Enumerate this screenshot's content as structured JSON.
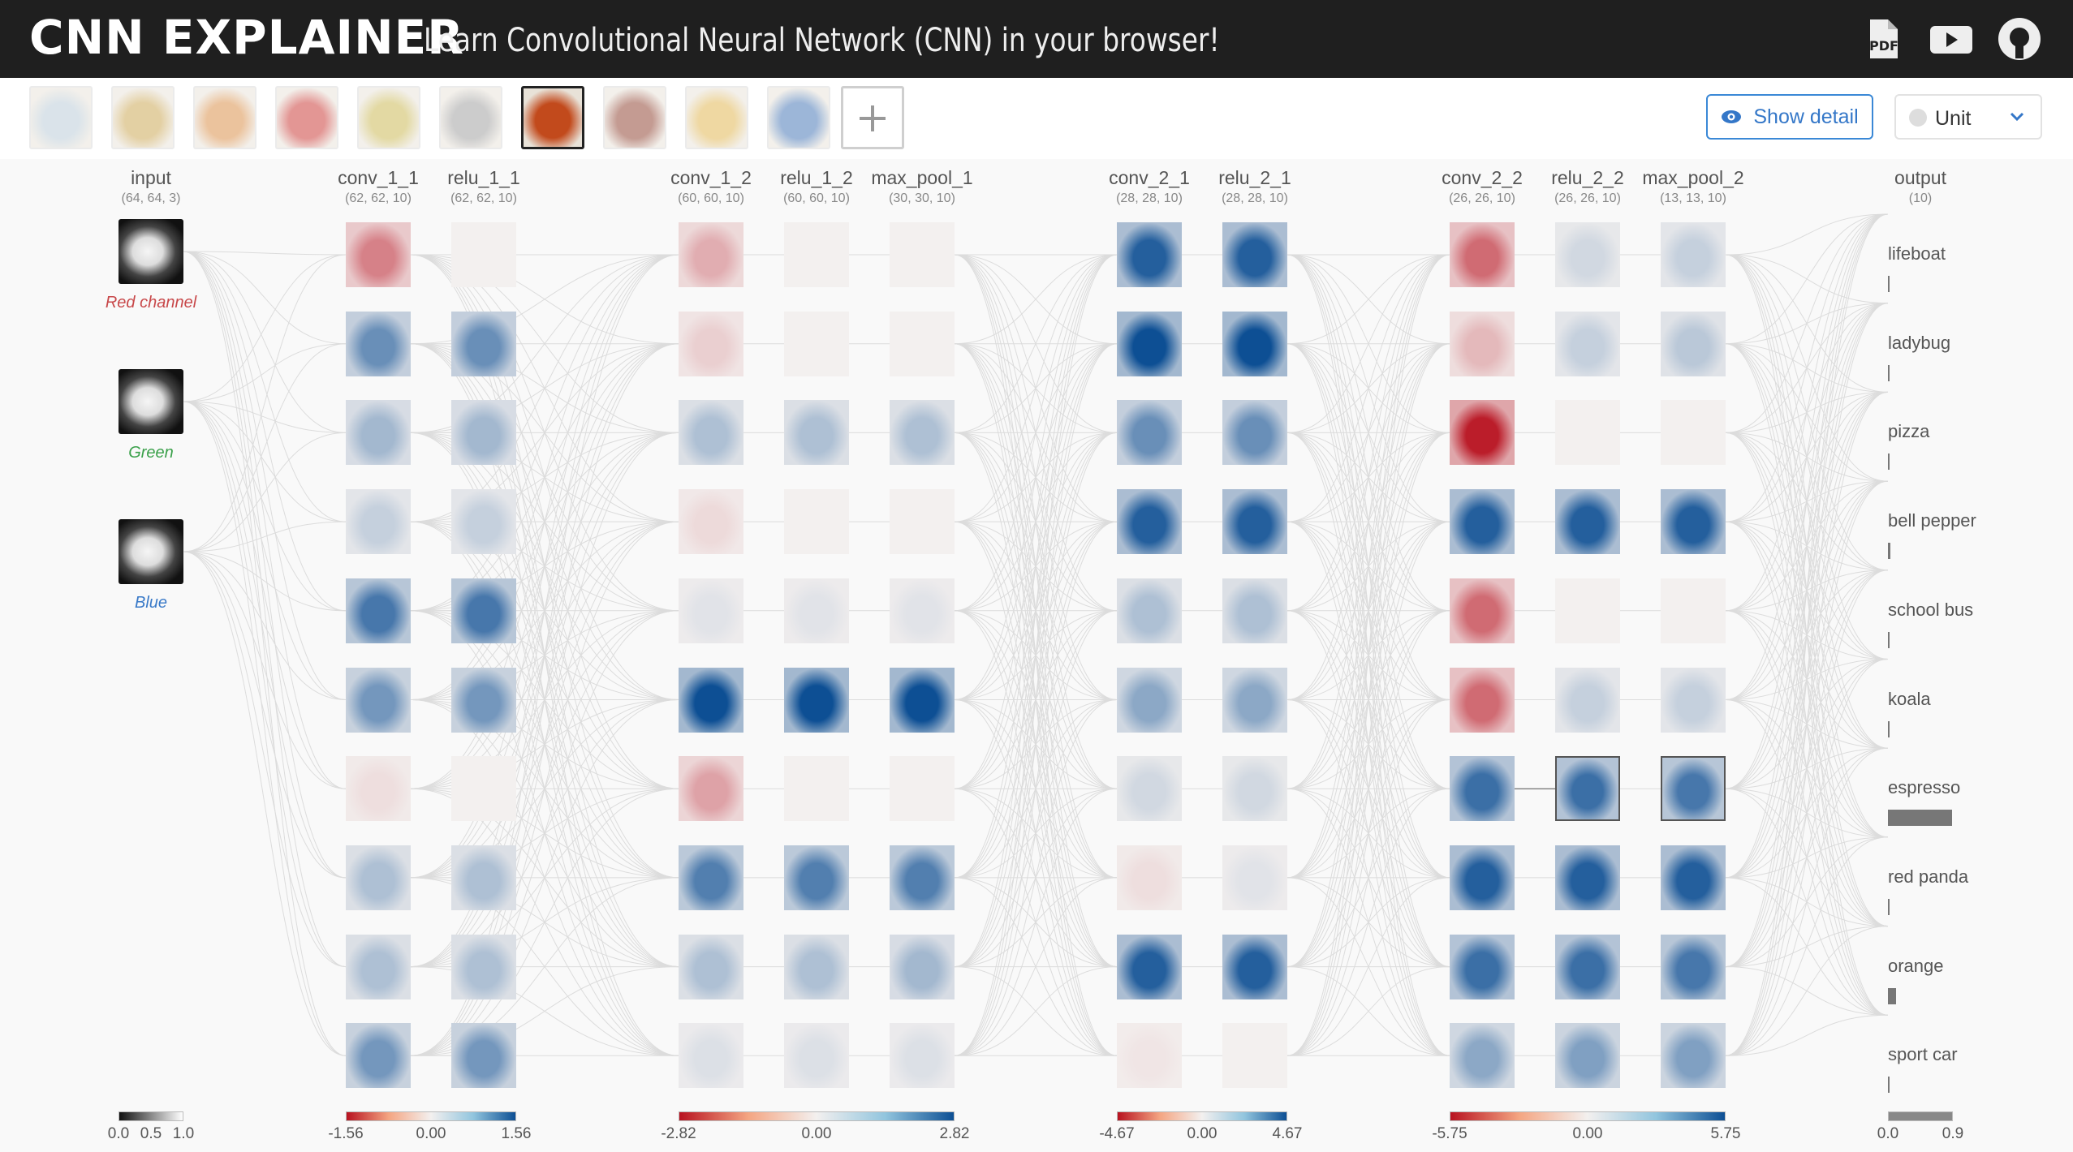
{
  "header": {
    "logo": "CNN EXPLAINER",
    "subtitle": "Learn Convolutional Neural Network (CNN) in your browser!",
    "icons": [
      "pdf-icon",
      "video-icon",
      "github-icon"
    ]
  },
  "toolbar": {
    "images": [
      {
        "name": "lifeboat",
        "color": "#b7c9d6"
      },
      {
        "name": "ladybug",
        "color": "#c9a24a"
      },
      {
        "name": "pizza",
        "color": "#d9883d"
      },
      {
        "name": "bell pepper",
        "color": "#c8302c"
      },
      {
        "name": "school bus",
        "color": "#c8b54a"
      },
      {
        "name": "koala",
        "color": "#9a9a9a"
      },
      {
        "name": "espresso",
        "color": "#c24a1c"
      },
      {
        "name": "red panda",
        "color": "#8a3a28"
      },
      {
        "name": "orange",
        "color": "#e0b247"
      },
      {
        "name": "sport car",
        "color": "#3c6fb3"
      }
    ],
    "selected_index": 6,
    "show_detail_label": "Show detail",
    "unit_label": "Unit"
  },
  "columns": [
    {
      "name": "input",
      "shape": "(64, 64, 3)"
    },
    {
      "name": "conv_1_1",
      "shape": "(62, 62, 10)"
    },
    {
      "name": "relu_1_1",
      "shape": "(62, 62, 10)"
    },
    {
      "name": "conv_1_2",
      "shape": "(60, 60, 10)"
    },
    {
      "name": "relu_1_2",
      "shape": "(60, 60, 10)"
    },
    {
      "name": "max_pool_1",
      "shape": "(30, 30, 10)"
    },
    {
      "name": "conv_2_1",
      "shape": "(28, 28, 10)"
    },
    {
      "name": "relu_2_1",
      "shape": "(28, 28, 10)"
    },
    {
      "name": "conv_2_2",
      "shape": "(26, 26, 10)"
    },
    {
      "name": "relu_2_2",
      "shape": "(26, 26, 10)"
    },
    {
      "name": "max_pool_2",
      "shape": "(13, 13, 10)"
    },
    {
      "name": "output",
      "shape": "(10)"
    }
  ],
  "input_channels": [
    {
      "label": "Red channel",
      "color": "#c8484a"
    },
    {
      "label": "Green",
      "color": "#3aa04a"
    },
    {
      "label": "Blue",
      "color": "#3a7ac8"
    }
  ],
  "activations": [
    [
      0.5,
      0.6,
      0.35,
      0.2,
      0.75,
      0.55,
      0.08,
      0.3,
      0.3,
      0.55
    ],
    [
      0.02,
      0.6,
      0.35,
      0.2,
      0.75,
      0.55,
      0.04,
      0.3,
      0.3,
      0.55
    ],
    [
      0.3,
      0.15,
      0.3,
      0.1,
      0.08,
      1.0,
      0.35,
      0.7,
      0.3,
      0.1
    ],
    [
      0.0,
      0.0,
      0.3,
      0.0,
      0.08,
      1.0,
      0.0,
      0.7,
      0.3,
      0.1
    ],
    [
      0.02,
      0.02,
      0.3,
      0.02,
      0.08,
      1.0,
      0.02,
      0.7,
      0.35,
      0.1
    ],
    [
      0.9,
      1.0,
      0.6,
      0.9,
      0.3,
      0.45,
      0.15,
      0.08,
      0.9,
      0.05
    ],
    [
      0.9,
      1.0,
      0.6,
      0.9,
      0.3,
      0.45,
      0.15,
      0.08,
      0.9,
      0.02
    ],
    [
      0.6,
      0.25,
      0.95,
      0.9,
      0.6,
      0.6,
      0.8,
      0.9,
      0.8,
      0.45
    ],
    [
      0.15,
      0.2,
      0.0,
      0.9,
      0.0,
      0.2,
      0.8,
      0.9,
      0.8,
      0.5
    ],
    [
      0.2,
      0.25,
      0.02,
      0.9,
      0.02,
      0.2,
      0.75,
      0.9,
      0.75,
      0.5
    ]
  ],
  "activation_signs": [
    [
      -1,
      1,
      1,
      1,
      1,
      1,
      -1,
      1,
      1,
      1
    ],
    [
      0,
      1,
      1,
      1,
      1,
      1,
      0,
      1,
      1,
      1
    ],
    [
      -1,
      -1,
      1,
      -1,
      1,
      1,
      -1,
      1,
      1,
      1
    ],
    [
      0,
      0,
      1,
      0,
      1,
      1,
      0,
      1,
      1,
      1
    ],
    [
      0,
      0,
      1,
      0,
      1,
      1,
      0,
      1,
      1,
      1
    ],
    [
      1,
      1,
      1,
      1,
      1,
      1,
      1,
      -1,
      1,
      -1
    ],
    [
      1,
      1,
      1,
      1,
      1,
      1,
      1,
      1,
      1,
      0
    ],
    [
      -1,
      -1,
      -1,
      1,
      -1,
      -1,
      1,
      1,
      1,
      1
    ],
    [
      1,
      1,
      0,
      1,
      0,
      1,
      1,
      1,
      1,
      1
    ],
    [
      1,
      1,
      0,
      1,
      0,
      1,
      1,
      1,
      1,
      1
    ]
  ],
  "highlighted": [
    {
      "col": 8,
      "row": 6
    },
    {
      "col": 9,
      "row": 6
    }
  ],
  "output": {
    "classes": [
      "lifeboat",
      "ladybug",
      "pizza",
      "bell pepper",
      "school bus",
      "koala",
      "espresso",
      "red panda",
      "orange",
      "sport car"
    ],
    "probabilities": [
      0.0,
      0.01,
      0.0,
      0.03,
      0.0,
      0.0,
      0.81,
      0.01,
      0.1,
      0.0
    ]
  },
  "colorbars": [
    {
      "min": "0.0",
      "mid": "0.5",
      "max": "1.0"
    },
    {
      "min": "-1.56",
      "mid": "0.00",
      "max": "1.56"
    },
    {
      "min": "-2.82",
      "mid": "0.00",
      "max": "2.82"
    },
    {
      "min": "-4.67",
      "mid": "0.00",
      "max": "4.67"
    },
    {
      "min": "-5.75",
      "mid": "0.00",
      "max": "5.75"
    },
    {
      "min": "0.0",
      "max": "0.9"
    }
  ],
  "colors": {
    "positive": "#0d4f94",
    "negative": "#b81220",
    "neutral": "#f3f0ef",
    "edge": "#dcdcdc",
    "accent": "#3a88d6"
  }
}
